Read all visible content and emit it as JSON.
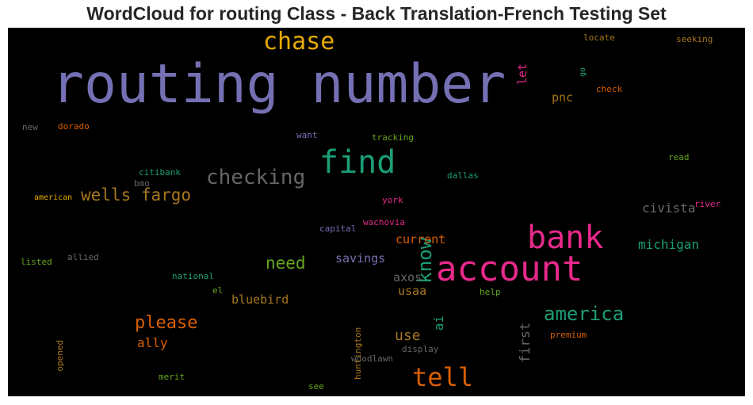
{
  "chart_data": {
    "type": "wordcloud",
    "title": "WordCloud for routing Class - Back Translation-French Testing Set",
    "background_color": "#000000",
    "palette": "Dark2",
    "words": [
      {
        "text": "routing number",
        "color": "#7570b3"
      },
      {
        "text": "account",
        "color": "#e7298a"
      },
      {
        "text": "bank",
        "color": "#e7298a"
      },
      {
        "text": "find",
        "color": "#1b9e77"
      },
      {
        "text": "tell",
        "color": "#d95f02"
      },
      {
        "text": "chase",
        "color": "#e6ab02"
      },
      {
        "text": "checking",
        "color": "#666666"
      },
      {
        "text": "wells fargo",
        "color": "#a6761d"
      },
      {
        "text": "know",
        "color": "#1b9e77"
      },
      {
        "text": "america",
        "color": "#1b9e77"
      },
      {
        "text": "please",
        "color": "#d95f02"
      },
      {
        "text": "need",
        "color": "#66a61e"
      },
      {
        "text": "michigan",
        "color": "#1b9e77"
      },
      {
        "text": "civista",
        "color": "#666666"
      },
      {
        "text": "bluebird",
        "color": "#a6761d"
      },
      {
        "text": "current",
        "color": "#d95f02"
      },
      {
        "text": "savings",
        "color": "#7570b3"
      },
      {
        "text": "axos",
        "color": "#666666"
      },
      {
        "text": "usaa",
        "color": "#a6761d"
      },
      {
        "text": "use",
        "color": "#a6761d"
      },
      {
        "text": "ai",
        "color": "#1b9e77"
      },
      {
        "text": "first",
        "color": "#666666"
      },
      {
        "text": "ally",
        "color": "#d95f02"
      },
      {
        "text": "pnc",
        "color": "#a6761d"
      },
      {
        "text": "let",
        "color": "#e7298a"
      },
      {
        "text": "locate",
        "color": "#a6761d"
      },
      {
        "text": "seeking",
        "color": "#a6761d"
      },
      {
        "text": "go",
        "color": "#1b9e77"
      },
      {
        "text": "check",
        "color": "#d95f02"
      },
      {
        "text": "new",
        "color": "#666666"
      },
      {
        "text": "dorado",
        "color": "#d95f02"
      },
      {
        "text": "want",
        "color": "#7570b3"
      },
      {
        "text": "tracking",
        "color": "#66a61e"
      },
      {
        "text": "read",
        "color": "#66a61e"
      },
      {
        "text": "citibank",
        "color": "#1b9e77"
      },
      {
        "text": "bmo",
        "color": "#666666"
      },
      {
        "text": "dallas",
        "color": "#1b9e77"
      },
      {
        "text": "american",
        "color": "#e6ab02"
      },
      {
        "text": "york",
        "color": "#e7298a"
      },
      {
        "text": "river",
        "color": "#e7298a"
      },
      {
        "text": "wachovia",
        "color": "#e7298a"
      },
      {
        "text": "capital",
        "color": "#7570b3"
      },
      {
        "text": "listed",
        "color": "#66a61e"
      },
      {
        "text": "allied",
        "color": "#666666"
      },
      {
        "text": "national",
        "color": "#1b9e77"
      },
      {
        "text": "el",
        "color": "#66a61e"
      },
      {
        "text": "huntington",
        "color": "#a6761d"
      },
      {
        "text": "help",
        "color": "#66a61e"
      },
      {
        "text": "opened",
        "color": "#a6761d"
      },
      {
        "text": "premium",
        "color": "#d95f02"
      },
      {
        "text": "display",
        "color": "#666666"
      },
      {
        "text": "woodlawn",
        "color": "#666666"
      },
      {
        "text": "merit",
        "color": "#66a61e"
      },
      {
        "text": "see",
        "color": "#66a61e"
      }
    ]
  }
}
